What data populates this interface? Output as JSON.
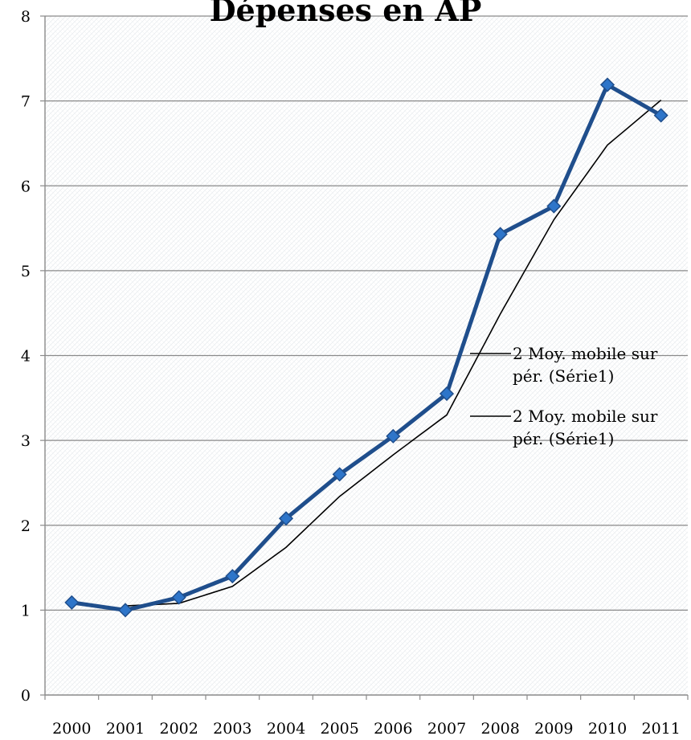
{
  "chart_data": {
    "type": "line",
    "title": "Dépenses en AP",
    "xlabel": "",
    "ylabel": "",
    "categories": [
      "2000",
      "2001",
      "2002",
      "2003",
      "2004",
      "2005",
      "2006",
      "2007",
      "2008",
      "2009",
      "2010",
      "2011"
    ],
    "ylim": [
      0,
      8
    ],
    "yticks": [
      "0",
      "1",
      "2",
      "3",
      "4",
      "5",
      "6",
      "7",
      "8"
    ],
    "grid": true,
    "legend_position": "right",
    "series": [
      {
        "values": [
          1.09,
          1.0,
          1.15,
          1.4,
          2.08,
          2.6,
          3.05,
          3.55,
          5.43,
          5.76,
          7.19,
          6.83
        ],
        "color": "#1f4e8c",
        "marker": "diamond",
        "marker_color": "#2e75c9"
      },
      {
        "name": "2 Moy. mobile sur pér. (Série1)",
        "values": [
          null,
          1.05,
          1.08,
          1.28,
          1.74,
          2.34,
          2.83,
          3.3,
          4.49,
          5.6,
          6.48,
          7.01
        ],
        "color": "#000000",
        "trendline": true
      }
    ],
    "legend": [
      "2 Moy. mobile sur pér. (Série1)",
      "2 Moy. mobile sur pér. (Série1)"
    ],
    "legend_lines": [
      "2 Moy. mobile sur",
      "pér. (Série1)"
    ]
  }
}
